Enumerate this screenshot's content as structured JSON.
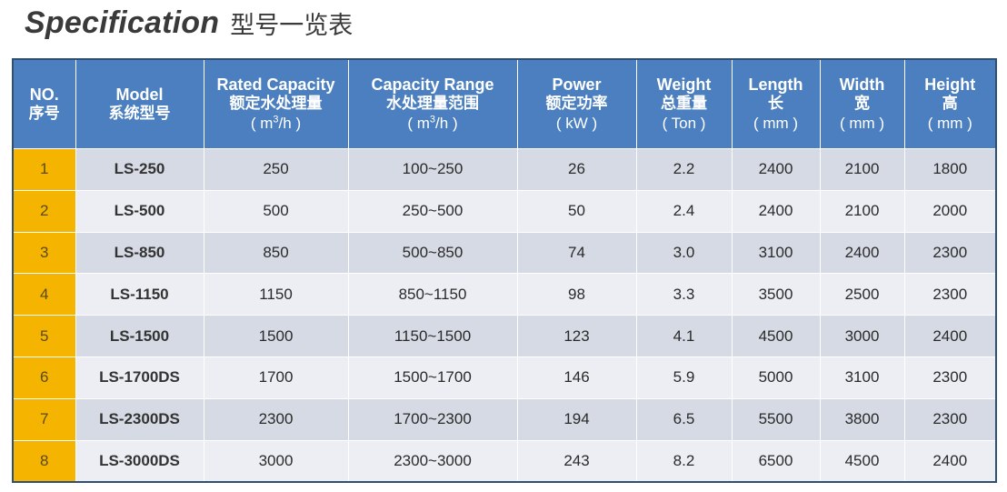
{
  "title": {
    "en": "Specification",
    "cn": "型号一览表"
  },
  "header": {
    "no": {
      "en": "NO.",
      "cn": "序号"
    },
    "model": {
      "en": "Model",
      "cn": "系统型号"
    },
    "rated": {
      "en": "Rated Capacity",
      "cn": "额定水处理量",
      "unit_pre": "( m",
      "unit_sup": "3",
      "unit_post": "/h )"
    },
    "range": {
      "en": "Capacity Range",
      "cn": "水处理量范围",
      "unit_pre": "( m",
      "unit_sup": "3",
      "unit_post": "/h )"
    },
    "power": {
      "en": "Power",
      "cn": "额定功率",
      "unit": "( kW )"
    },
    "weight": {
      "en": "Weight",
      "cn": "总重量",
      "unit": "( Ton )"
    },
    "length": {
      "en": "Length",
      "cn": "长",
      "unit": "( mm )"
    },
    "width": {
      "en": "Width",
      "cn": "宽",
      "unit": "( mm )"
    },
    "height": {
      "en": "Height",
      "cn": "高",
      "unit": "( mm )"
    }
  },
  "rows": [
    {
      "no": "1",
      "model": "LS-250",
      "rated": "250",
      "range": "100~250",
      "power": "26",
      "weight": "2.2",
      "length": "2400",
      "width": "2100",
      "height": "1800"
    },
    {
      "no": "2",
      "model": "LS-500",
      "rated": "500",
      "range": "250~500",
      "power": "50",
      "weight": "2.4",
      "length": "2400",
      "width": "2100",
      "height": "2000"
    },
    {
      "no": "3",
      "model": "LS-850",
      "rated": "850",
      "range": "500~850",
      "power": "74",
      "weight": "3.0",
      "length": "3100",
      "width": "2400",
      "height": "2300"
    },
    {
      "no": "4",
      "model": "LS-1150",
      "rated": "1150",
      "range": "850~1150",
      "power": "98",
      "weight": "3.3",
      "length": "3500",
      "width": "2500",
      "height": "2300"
    },
    {
      "no": "5",
      "model": "LS-1500",
      "rated": "1500",
      "range": "1150~1500",
      "power": "123",
      "weight": "4.1",
      "length": "4500",
      "width": "3000",
      "height": "2400"
    },
    {
      "no": "6",
      "model": "LS-1700DS",
      "rated": "1700",
      "range": "1500~1700",
      "power": "146",
      "weight": "5.9",
      "length": "5000",
      "width": "3100",
      "height": "2300"
    },
    {
      "no": "7",
      "model": "LS-2300DS",
      "rated": "2300",
      "range": "1700~2300",
      "power": "194",
      "weight": "6.5",
      "length": "5500",
      "width": "3800",
      "height": "2300"
    },
    {
      "no": "8",
      "model": "LS-3000DS",
      "rated": "3000",
      "range": "2300~3000",
      "power": "243",
      "weight": "8.2",
      "length": "6500",
      "width": "4500",
      "height": "2400"
    }
  ],
  "colors": {
    "header_bg": "#4b7fbf",
    "no_cell_bg": "#f4b400",
    "row_dark": "#d6dae4",
    "row_light": "#eceef3"
  }
}
